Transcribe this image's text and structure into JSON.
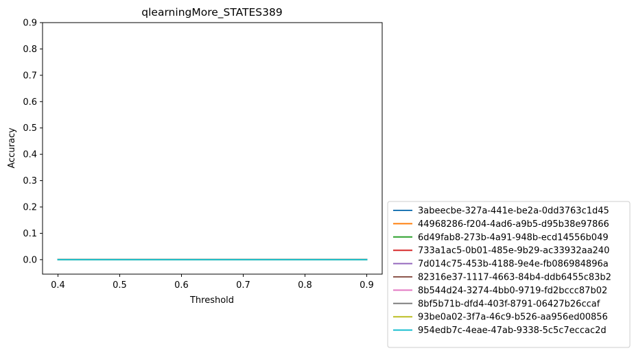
{
  "chart_data": {
    "type": "line",
    "title": "qlearningMore_STATES389",
    "xlabel": "Threshold",
    "ylabel": "Accuracy",
    "xlim": [
      0.375,
      0.925
    ],
    "ylim": [
      -0.055,
      0.9
    ],
    "xticks": [
      0.4,
      0.5,
      0.6,
      0.7,
      0.8,
      0.9
    ],
    "xtick_labels": [
      "0.4",
      "0.5",
      "0.6",
      "0.7",
      "0.8",
      "0.9"
    ],
    "yticks": [
      0.0,
      0.1,
      0.2,
      0.3,
      0.4,
      0.5,
      0.6,
      0.7,
      0.8,
      0.9
    ],
    "ytick_labels": [
      "0.0",
      "0.1",
      "0.2",
      "0.3",
      "0.4",
      "0.5",
      "0.6",
      "0.7",
      "0.8",
      "0.9"
    ],
    "x": [
      0.4,
      0.5,
      0.6,
      0.7,
      0.8,
      0.9
    ],
    "grid": false,
    "legend_position": "outside-bottom-right",
    "series": [
      {
        "name": "3abeecbe-327a-441e-be2a-0dd3763c1d45",
        "color": "#1f77b4",
        "values": [
          0,
          0,
          0,
          0,
          0,
          0
        ]
      },
      {
        "name": "44968286-f204-4ad6-a9b5-d95b38e97866",
        "color": "#ff7f0e",
        "values": [
          0,
          0,
          0,
          0,
          0,
          0
        ]
      },
      {
        "name": "6d49fab8-273b-4a91-948b-ecd14556b049",
        "color": "#2ca02c",
        "values": [
          0,
          0,
          0,
          0,
          0,
          0
        ]
      },
      {
        "name": "733a1ac5-0b01-485e-9b29-ac33932aa240",
        "color": "#d62728",
        "values": [
          0,
          0,
          0,
          0,
          0,
          0
        ]
      },
      {
        "name": "7d014c75-453b-4188-9e4e-fb086984896a",
        "color": "#9467bd",
        "values": [
          0,
          0,
          0,
          0,
          0,
          0
        ]
      },
      {
        "name": "82316e37-1117-4663-84b4-ddb6455c83b2",
        "color": "#8c564b",
        "values": [
          0,
          0,
          0,
          0,
          0,
          0
        ]
      },
      {
        "name": "8b544d24-3274-4bb0-9719-fd2bccc87b02",
        "color": "#e377c2",
        "values": [
          0,
          0,
          0,
          0,
          0,
          0
        ]
      },
      {
        "name": "8bf5b71b-dfd4-403f-8791-06427b26ccaf",
        "color": "#7f7f7f",
        "values": [
          0,
          0,
          0,
          0,
          0,
          0
        ]
      },
      {
        "name": "93be0a02-3f7a-46c9-b526-aa956ed00856",
        "color": "#bcbd22",
        "values": [
          0,
          0,
          0,
          0,
          0,
          0
        ]
      },
      {
        "name": "954edb7c-4eae-47ab-9338-5c5c7eccac2d",
        "color": "#17becf",
        "values": [
          0,
          0,
          0,
          0,
          0,
          0
        ]
      }
    ]
  }
}
